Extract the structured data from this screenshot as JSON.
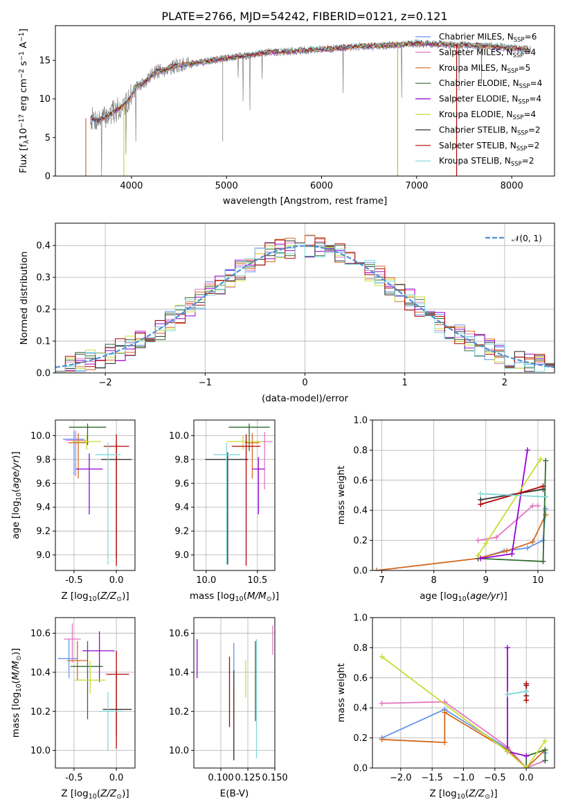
{
  "title": "PLATE=2766, MJD=54242, FIBERID=0121, z=0.121",
  "colors": [
    "#6495ED",
    "#E377C2",
    "#D2691E",
    "#2E6B2E",
    "#9400D3",
    "#C8DC32",
    "#333333",
    "#B40000",
    "#7FD8D8"
  ],
  "series_names": [
    "Chabrier MILES, N_SSP=6",
    "Salpeter MILES, N_SSP=4",
    "Kroupa MILES, N_SSP=5",
    "Chabrier ELODIE, N_SSP=4",
    "Salpeter ELODIE, N_SSP=4",
    "Kroupa ELODIE, N_SSP=4",
    "Chabrier STELIB, N_SSP=2",
    "Salpeter STELIB, N_SSP=2",
    "Kroupa STELIB, N_SSP=2"
  ],
  "chart_data": [
    {
      "id": "spectrum",
      "type": "line",
      "xlabel": "wavelength [Angstrom, rest frame]",
      "ylabel": "Flux [f_λ10^-17 erg cm^-2 s^-1 A^-1]",
      "xlim": [
        3200,
        8450
      ],
      "ylim": [
        0,
        19.5
      ],
      "xticks": [
        4000,
        5000,
        6000,
        7000,
        8000
      ],
      "yticks": [
        0,
        5,
        10,
        15
      ],
      "data_flux_x": [
        3570,
        3650,
        3750,
        3850,
        3950,
        4050,
        4150,
        4250,
        4350,
        4450,
        4600,
        4800,
        5000,
        5200,
        5400,
        5600,
        5800,
        6000,
        6200,
        6400,
        6600,
        6800,
        7000,
        7200,
        7400,
        7600,
        7800,
        8000,
        8200
      ],
      "data_flux_y": [
        7.5,
        7.2,
        7.8,
        8.6,
        9.5,
        11.5,
        12.3,
        13.5,
        13.8,
        14.2,
        14.5,
        14.9,
        15.3,
        15.6,
        16.0,
        16.1,
        16.3,
        16.4,
        16.6,
        16.8,
        16.9,
        17.0,
        17.2,
        17.1,
        17.0,
        16.9,
        16.8,
        16.6,
        16.4
      ],
      "legend": [
        "Chabrier MILES, N_SSP=6",
        "Salpeter MILES, N_SSP=4",
        "Kroupa MILES, N_SSP=5",
        "Chabrier ELODIE, N_SSP=4",
        "Salpeter ELODIE, N_SSP=4",
        "Kroupa ELODIE, N_SSP=4",
        "Chabrier STELIB, N_SSP=2",
        "Salpeter STELIB, N_SSP=2",
        "Kroupa STELIB, N_SSP=2"
      ],
      "legend_placement": "upper right"
    },
    {
      "id": "residuals",
      "type": "step",
      "xlabel": "(data-model)/error",
      "ylabel": "Normed distribution",
      "xlim": [
        -2.5,
        2.5
      ],
      "ylim": [
        0,
        0.47
      ],
      "xticks": [
        -2,
        -1,
        0,
        1,
        2
      ],
      "yticks": [
        0,
        0.1,
        0.2,
        0.3,
        0.4
      ],
      "bin_width": 0.1,
      "reference_curve": "N(0,1)",
      "legend": [
        "𝒩(0, 1)"
      ],
      "legend_placement": "upper right",
      "grid": true
    },
    {
      "id": "age_vs_Z",
      "type": "errorbar",
      "xlabel": "Z [log10(Z/Z☉)]",
      "ylabel": "age  [log10(age/yr)]",
      "xlim": [
        -0.72,
        0.22
      ],
      "ylim": [
        8.87,
        10.13
      ],
      "xticks": [
        -0.5,
        0.0
      ],
      "yticks": [
        9.0,
        9.2,
        9.4,
        9.6,
        9.8,
        10.0
      ],
      "grid": true,
      "points": [
        {
          "x": -0.5,
          "y": 9.97,
          "xerr": [
            0.13,
            0.12
          ],
          "yerr": [
            0.3,
            0.07
          ]
        },
        {
          "x": -0.48,
          "y": 9.96,
          "xerr": [
            0.12,
            0.12
          ],
          "yerr": [
            0.3,
            0.08
          ]
        },
        {
          "x": -0.45,
          "y": 9.94,
          "xerr": [
            0.12,
            0.12
          ],
          "yerr": [
            0.3,
            0.08
          ]
        },
        {
          "x": -0.34,
          "y": 10.07,
          "xerr": [
            0.22,
            0.22
          ],
          "yerr": [
            0.15,
            0.03
          ]
        },
        {
          "x": -0.32,
          "y": 9.72,
          "xerr": [
            0.16,
            0.16
          ],
          "yerr": [
            0.38,
            0.13
          ]
        },
        {
          "x": -0.35,
          "y": 9.95,
          "xerr": [
            0.17,
            0.17
          ],
          "yerr": [
            0.07,
            0.05
          ]
        },
        {
          "x": 0.0,
          "y": 9.8,
          "xerr": [
            0.18,
            0.18
          ],
          "yerr": [
            0.82,
            0.15
          ]
        },
        {
          "x": 0.0,
          "y": 9.91,
          "xerr": [
            0.15,
            0.15
          ],
          "yerr": [
            1.0,
            0.1
          ]
        },
        {
          "x": -0.1,
          "y": 9.84,
          "xerr": [
            0.15,
            0.15
          ],
          "yerr": [
            0.92,
            0.1
          ]
        }
      ]
    },
    {
      "id": "age_vs_mass",
      "type": "errorbar",
      "xlabel": "mass [log10(M/M☉)]",
      "ylabel": "",
      "xlim": [
        9.88,
        10.67
      ],
      "ylim": [
        8.87,
        10.13
      ],
      "xticks": [
        10.0,
        10.5
      ],
      "yticks": [
        9.0,
        9.2,
        9.4,
        9.6,
        9.8,
        10.0
      ],
      "grid": true,
      "points": [
        {
          "x": 10.21,
          "y": 9.8,
          "xerr": [
            0.17,
            0.17
          ],
          "yerr": [
            0.88,
            0.06
          ]
        },
        {
          "x": 10.57,
          "y": 9.95,
          "xerr": [
            0.08,
            0.08
          ],
          "yerr": [
            0.4,
            0.08
          ]
        },
        {
          "x": 10.45,
          "y": 9.94,
          "xerr": [
            0.07,
            0.07
          ],
          "yerr": [
            0.3,
            0.08
          ]
        },
        {
          "x": 10.42,
          "y": 10.07,
          "xerr": [
            0.2,
            0.2
          ],
          "yerr": [
            0.2,
            0.03
          ]
        },
        {
          "x": 10.51,
          "y": 9.72,
          "xerr": [
            0.06,
            0.06
          ],
          "yerr": [
            0.38,
            0.1
          ]
        },
        {
          "x": 10.36,
          "y": 9.95,
          "xerr": [
            0.16,
            0.2
          ],
          "yerr": [
            0.07,
            0.05
          ]
        },
        {
          "x": 10.21,
          "y": 9.8,
          "xerr": [
            0.22,
            0.2
          ],
          "yerr": [
            0.88,
            0.06
          ]
        },
        {
          "x": 10.39,
          "y": 9.91,
          "xerr": [
            0.14,
            0.14
          ],
          "yerr": [
            1.0,
            0.1
          ]
        },
        {
          "x": 10.2,
          "y": 9.84,
          "xerr": [
            0.13,
            0.13
          ],
          "yerr": [
            0.92,
            0.1
          ]
        }
      ]
    },
    {
      "id": "weight_vs_age",
      "type": "line",
      "xlabel": "age  [log10(age/yr)]",
      "ylabel": "mass weight",
      "xlim": [
        6.82,
        10.32
      ],
      "ylim": [
        0,
        1.0
      ],
      "xticks": [
        7,
        8,
        9,
        10
      ],
      "yticks": [
        0.0,
        0.2,
        0.4,
        0.6,
        0.8,
        1.0
      ],
      "grid": true,
      "series": [
        {
          "x": [
            8.85,
            9.35,
            9.8,
            10.1,
            10.15
          ],
          "y": [
            0.08,
            0.13,
            0.15,
            0.2,
            0.41
          ]
        },
        {
          "x": [
            8.85,
            9.2,
            9.9,
            10.0
          ],
          "y": [
            0.2,
            0.22,
            0.43,
            0.43
          ]
        },
        {
          "x": [
            6.9,
            8.85,
            9.4,
            9.9,
            10.15
          ],
          "y": [
            0.0,
            0.08,
            0.13,
            0.19,
            0.37
          ]
        },
        {
          "x": [
            8.85,
            10.1,
            10.15
          ],
          "y": [
            0.08,
            0.06,
            0.73
          ]
        },
        {
          "x": [
            8.9,
            9.5,
            9.8
          ],
          "y": [
            0.08,
            0.11,
            0.8
          ]
        },
        {
          "x": [
            8.85,
            9.0,
            10.05
          ],
          "y": [
            0.1,
            0.18,
            0.74
          ]
        },
        {
          "x": [
            8.9,
            10.1
          ],
          "y": [
            0.47,
            0.54
          ]
        },
        {
          "x": [
            8.9,
            10.1
          ],
          "y": [
            0.44,
            0.56
          ]
        },
        {
          "x": [
            8.9,
            10.15
          ],
          "y": [
            0.51,
            0.49
          ]
        }
      ]
    },
    {
      "id": "mass_vs_Z",
      "type": "errorbar",
      "xlabel": "Z [log10(Z/Z☉)]",
      "ylabel": "mass [log10(M/M☉)]",
      "xlim": [
        -0.72,
        0.22
      ],
      "ylim": [
        9.91,
        10.68
      ],
      "xticks": [
        -0.5,
        0.0
      ],
      "yticks": [
        10.0,
        10.2,
        10.4,
        10.6
      ],
      "grid": true,
      "points": [
        {
          "x": -0.56,
          "y": 10.47,
          "xerr": [
            0.13,
            0.1
          ],
          "yerr": [
            0.1,
            0.1
          ]
        },
        {
          "x": -0.52,
          "y": 10.57,
          "xerr": [
            0.1,
            0.1
          ],
          "yerr": [
            0.12,
            0.08
          ]
        },
        {
          "x": -0.46,
          "y": 10.46,
          "xerr": [
            0.12,
            0.12
          ],
          "yerr": [
            0.1,
            0.1
          ]
        },
        {
          "x": -0.34,
          "y": 10.43,
          "xerr": [
            0.2,
            0.18
          ],
          "yerr": [
            0.27,
            0.13
          ]
        },
        {
          "x": -0.2,
          "y": 10.51,
          "xerr": [
            0.2,
            0.18
          ],
          "yerr": [
            0.16,
            0.1
          ]
        },
        {
          "x": -0.31,
          "y": 10.36,
          "xerr": [
            0.18,
            0.18
          ],
          "yerr": [
            0.07,
            0.1
          ]
        },
        {
          "x": 0.0,
          "y": 10.21,
          "xerr": [
            0.16,
            0.18
          ],
          "yerr": [
            0.14,
            0.2
          ]
        },
        {
          "x": 0.0,
          "y": 10.39,
          "xerr": [
            0.12,
            0.15
          ],
          "yerr": [
            0.38,
            0.12
          ]
        },
        {
          "x": -0.1,
          "y": 10.2,
          "xerr": [
            0.1,
            0.17
          ],
          "yerr": [
            0.2,
            0.1
          ]
        }
      ]
    },
    {
      "id": "mass_vs_EBV",
      "type": "errorbar",
      "xlabel": "E(B-V)",
      "ylabel": "",
      "xlim": [
        0.075,
        0.15
      ],
      "ylim": [
        9.91,
        10.68
      ],
      "xticks": [
        0.1,
        0.125,
        0.15
      ],
      "yticks": [
        10.0,
        10.2,
        10.4,
        10.6
      ],
      "grid": true,
      "points": [
        {
          "x": 0.112,
          "y": 10.2,
          "yerr": [
            0.25,
            0.35
          ]
        },
        {
          "x": 0.148,
          "y": 10.57,
          "yerr": [
            0.08,
            0.07
          ]
        },
        {
          "x": 0.112,
          "y": 10.24,
          "yerr": [
            0.1,
            0.1
          ]
        },
        {
          "x": 0.132,
          "y": 10.43,
          "yerr": [
            0.28,
            0.13
          ]
        },
        {
          "x": 0.078,
          "y": 10.47,
          "yerr": [
            0.1,
            0.1
          ]
        },
        {
          "x": 0.123,
          "y": 10.36,
          "yerr": [
            0.09,
            0.1
          ]
        },
        {
          "x": 0.112,
          "y": 10.21,
          "yerr": [
            0.26,
            0.2
          ]
        },
        {
          "x": 0.108,
          "y": 10.3,
          "yerr": [
            0.18,
            0.18
          ]
        },
        {
          "x": 0.133,
          "y": 10.2,
          "yerr": [
            0.24,
            0.37
          ]
        }
      ]
    },
    {
      "id": "weight_vs_Z",
      "type": "line",
      "xlabel": "Z [log10(Z/Z☉)]",
      "ylabel": "mass weight",
      "xlim": [
        -2.45,
        0.45
      ],
      "ylim": [
        0,
        1.0
      ],
      "xticks": [
        -2.0,
        -1.5,
        -1.0,
        -0.5,
        0.0
      ],
      "yticks": [
        0.0,
        0.2,
        0.4,
        0.6,
        0.8,
        1.0
      ],
      "grid": true,
      "series": [
        {
          "x": [
            -2.3,
            -1.3,
            -0.3,
            0.0,
            0.3,
            0.3
          ],
          "y": [
            0.2,
            0.39,
            0.13,
            0.0,
            0.05,
            0.1
          ]
        },
        {
          "x": [
            -2.3,
            -1.3,
            -0.3,
            0.0,
            0.3
          ],
          "y": [
            0.43,
            0.44,
            0.14,
            0.0,
            0.05
          ]
        },
        {
          "x": [
            -2.3,
            -1.3,
            -1.3,
            -0.3,
            0.0,
            0.3
          ],
          "y": [
            0.19,
            0.17,
            0.37,
            0.12,
            0.0,
            0.12
          ]
        },
        {
          "x": [
            0.0,
            0.0,
            0.3,
            0.3
          ],
          "y": [
            0.0,
            0.08,
            0.12,
            0.05
          ]
        },
        {
          "x": [
            -0.3,
            -0.3,
            0.0
          ],
          "y": [
            0.8,
            0.11,
            0.08
          ]
        },
        {
          "x": [
            -2.3,
            -0.3,
            0.0,
            0.3
          ],
          "y": [
            0.74,
            0.11,
            0.0,
            0.18
          ]
        },
        {
          "x": [
            0.0,
            0.0
          ],
          "y": [
            0.48,
            0.55
          ]
        },
        {
          "x": [
            0.0,
            0.0
          ],
          "y": [
            0.45,
            0.56
          ]
        },
        {
          "x": [
            -0.3,
            0.0
          ],
          "y": [
            0.49,
            0.51
          ]
        }
      ]
    }
  ]
}
